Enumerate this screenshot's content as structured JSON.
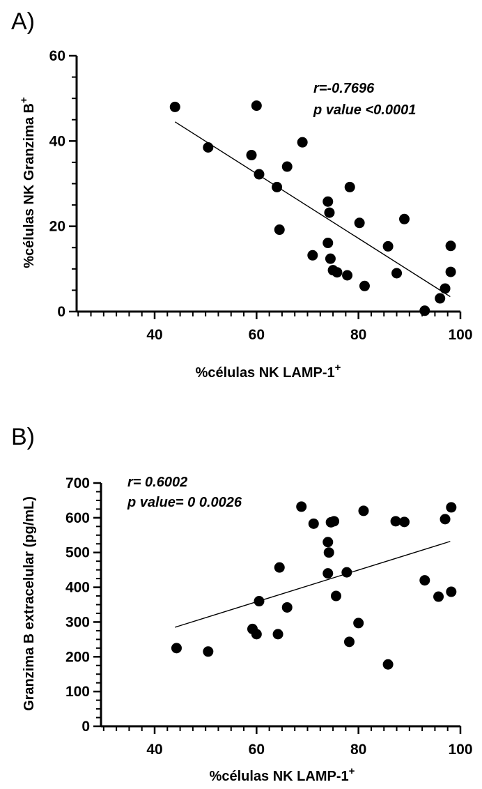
{
  "chart_data": [
    {
      "panel_label": "A)",
      "type": "scatter",
      "xlabel": "%células NK LAMP-1",
      "xlabel_sup": "+",
      "ylabel": "%células NK Granzima B",
      "ylabel_sup": "+",
      "xlim": [
        25,
        100
      ],
      "ylim": [
        0,
        60
      ],
      "x_ticks": [
        40,
        60,
        80,
        100
      ],
      "y_ticks": [
        0,
        20,
        40,
        60
      ],
      "annotations": [
        "r=-0.7696",
        "p value <0.0001"
      ],
      "regression_line": {
        "x": [
          44,
          98
        ],
        "y": [
          44.5,
          3.5
        ]
      },
      "points": [
        {
          "x": 44,
          "y": 48
        },
        {
          "x": 50.5,
          "y": 38.5
        },
        {
          "x": 59,
          "y": 36.7
        },
        {
          "x": 60,
          "y": 48.3
        },
        {
          "x": 60.5,
          "y": 32.2
        },
        {
          "x": 64,
          "y": 29.2
        },
        {
          "x": 64.5,
          "y": 19.2
        },
        {
          "x": 66,
          "y": 34
        },
        {
          "x": 69,
          "y": 39.7
        },
        {
          "x": 71,
          "y": 13.2
        },
        {
          "x": 74,
          "y": 25.8
        },
        {
          "x": 74.3,
          "y": 23.2
        },
        {
          "x": 74,
          "y": 16.1
        },
        {
          "x": 74.5,
          "y": 12.4
        },
        {
          "x": 75,
          "y": 9.7
        },
        {
          "x": 75.8,
          "y": 9.2
        },
        {
          "x": 77.8,
          "y": 8.5
        },
        {
          "x": 78.3,
          "y": 29.2
        },
        {
          "x": 80.2,
          "y": 20.8
        },
        {
          "x": 81.2,
          "y": 6.0
        },
        {
          "x": 85.8,
          "y": 15.3
        },
        {
          "x": 87.5,
          "y": 9.0
        },
        {
          "x": 89,
          "y": 21.7
        },
        {
          "x": 93,
          "y": 0.2
        },
        {
          "x": 96,
          "y": 3.1
        },
        {
          "x": 97,
          "y": 5.4
        },
        {
          "x": 98.1,
          "y": 15.4
        },
        {
          "x": 98.1,
          "y": 9.3
        }
      ]
    },
    {
      "panel_label": "B)",
      "type": "scatter",
      "xlabel": "%células NK LAMP-1",
      "xlabel_sup": "+",
      "ylabel": "Granzima B extracelular (pg/mL)",
      "xlim": [
        30,
        100
      ],
      "ylim": [
        0,
        700
      ],
      "x_ticks": [
        40,
        60,
        80,
        100
      ],
      "y_ticks": [
        0,
        100,
        200,
        300,
        400,
        500,
        600,
        700
      ],
      "annotations": [
        "r= 0.6002",
        "p value= 0 0.0026"
      ],
      "regression_line": {
        "x": [
          44,
          98
        ],
        "y": [
          285,
          532
        ]
      },
      "points": [
        {
          "x": 44.3,
          "y": 225
        },
        {
          "x": 50.5,
          "y": 215
        },
        {
          "x": 59.2,
          "y": 280
        },
        {
          "x": 60,
          "y": 265
        },
        {
          "x": 60.5,
          "y": 360
        },
        {
          "x": 64.2,
          "y": 265
        },
        {
          "x": 64.5,
          "y": 457
        },
        {
          "x": 66,
          "y": 342
        },
        {
          "x": 68.8,
          "y": 632
        },
        {
          "x": 71.2,
          "y": 583
        },
        {
          "x": 74,
          "y": 530
        },
        {
          "x": 74.2,
          "y": 500
        },
        {
          "x": 74,
          "y": 440
        },
        {
          "x": 74.6,
          "y": 587
        },
        {
          "x": 75.2,
          "y": 590
        },
        {
          "x": 75.6,
          "y": 375
        },
        {
          "x": 77.7,
          "y": 443
        },
        {
          "x": 78.2,
          "y": 243
        },
        {
          "x": 80,
          "y": 297
        },
        {
          "x": 81,
          "y": 620
        },
        {
          "x": 85.8,
          "y": 178
        },
        {
          "x": 87.3,
          "y": 590
        },
        {
          "x": 89,
          "y": 588
        },
        {
          "x": 93,
          "y": 420
        },
        {
          "x": 95.7,
          "y": 373
        },
        {
          "x": 97,
          "y": 596
        },
        {
          "x": 98.2,
          "y": 630
        },
        {
          "x": 98.2,
          "y": 387
        }
      ]
    }
  ]
}
